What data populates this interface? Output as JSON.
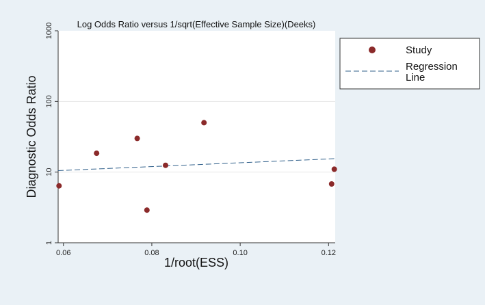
{
  "chart_data": {
    "type": "scatter",
    "title": "Log Odds Ratio versus 1/sqrt(Effective Sample Size)(Deeks)",
    "xlabel": "1/root(ESS)",
    "ylabel": "Diagnostic Odds Ratio",
    "xlim": [
      0.0588,
      0.1215
    ],
    "ylim": [
      1,
      1000
    ],
    "y_scale": "log",
    "x_ticks": [
      0.06,
      0.08,
      0.1,
      0.12
    ],
    "x_tick_labels": [
      "0.06",
      "0.08",
      "0.10",
      "0.12"
    ],
    "y_ticks": [
      1,
      10,
      100,
      1000
    ],
    "y_tick_labels": [
      "1",
      "10",
      "100",
      "1000"
    ],
    "grid": "horizontal",
    "legend_position": "right",
    "series": [
      {
        "name": "Study",
        "kind": "points",
        "color": "#8b2a2a",
        "points": [
          {
            "x": 0.059,
            "y": 6.4
          },
          {
            "x": 0.0675,
            "y": 18.5
          },
          {
            "x": 0.0767,
            "y": 30.0
          },
          {
            "x": 0.0789,
            "y": 2.9
          },
          {
            "x": 0.0831,
            "y": 12.5
          },
          {
            "x": 0.0918,
            "y": 50.0
          },
          {
            "x": 0.1207,
            "y": 6.8
          },
          {
            "x": 0.1213,
            "y": 11.0
          }
        ]
      },
      {
        "name": "Regression Line",
        "kind": "line",
        "color": "#2f5f8a",
        "dash": true,
        "points": [
          {
            "x": 0.0588,
            "y": 10.5
          },
          {
            "x": 0.1215,
            "y": 15.5
          }
        ]
      }
    ]
  },
  "legend": {
    "study_label": "Study",
    "regression_label_line1": "Regression",
    "regression_label_line2": "Line"
  },
  "colors": {
    "page_background": "#eaf1f6",
    "plot_background": "#ffffff",
    "marker": "#8b2a2a",
    "regression_line": "#2f5f8a"
  }
}
